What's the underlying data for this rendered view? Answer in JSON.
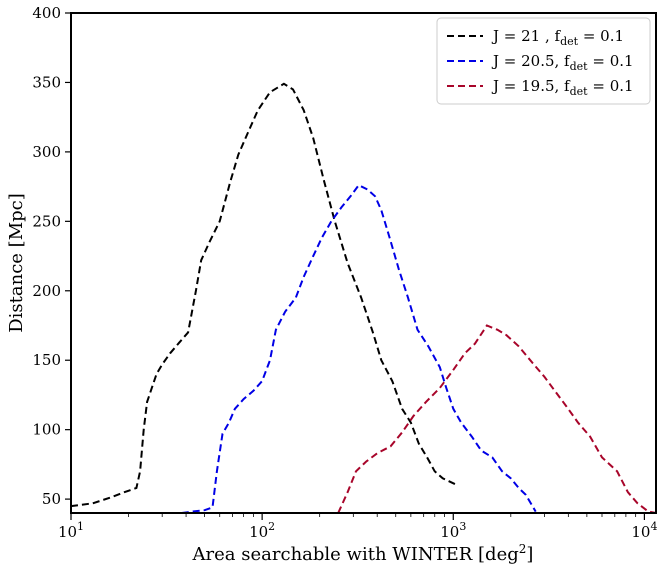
{
  "chart_data": {
    "type": "line",
    "xlabel": "Area searchable with WINTER [deg",
    "xlabel_sup": "2",
    "xlabel_end": "]",
    "ylabel": "Distance [Mpc]",
    "xscale": "log",
    "xlim": [
      10,
      11500
    ],
    "ylim": [
      40,
      400
    ],
    "x_ticks": [
      {
        "value": 10,
        "base": "10",
        "exp": "1"
      },
      {
        "value": 100,
        "base": "10",
        "exp": "2"
      },
      {
        "value": 1000,
        "base": "10",
        "exp": "3"
      },
      {
        "value": 10000,
        "base": "10",
        "exp": "4"
      }
    ],
    "y_ticks": [
      50,
      100,
      150,
      200,
      250,
      300,
      350,
      400
    ],
    "grid": false,
    "legend_position": "top-right",
    "series": [
      {
        "name_main": "J = 21 , f",
        "name_sub": "det",
        "name_end": " = 0.1",
        "color": "#000000",
        "points": [
          [
            10,
            45
          ],
          [
            13,
            47
          ],
          [
            16,
            51
          ],
          [
            19,
            55
          ],
          [
            22,
            58
          ],
          [
            23,
            70
          ],
          [
            24,
            100
          ],
          [
            25,
            120
          ],
          [
            28,
            140
          ],
          [
            30,
            147
          ],
          [
            33,
            155
          ],
          [
            37,
            163
          ],
          [
            41,
            170
          ],
          [
            45,
            200
          ],
          [
            48,
            222
          ],
          [
            53,
            235
          ],
          [
            60,
            250
          ],
          [
            68,
            278
          ],
          [
            75,
            298
          ],
          [
            85,
            315
          ],
          [
            95,
            330
          ],
          [
            110,
            343
          ],
          [
            130,
            349
          ],
          [
            145,
            345
          ],
          [
            165,
            330
          ],
          [
            185,
            310
          ],
          [
            210,
            280
          ],
          [
            240,
            250
          ],
          [
            280,
            220
          ],
          [
            330,
            195
          ],
          [
            380,
            170
          ],
          [
            420,
            150
          ],
          [
            480,
            135
          ],
          [
            540,
            115
          ],
          [
            600,
            105
          ],
          [
            660,
            90
          ],
          [
            730,
            80
          ],
          [
            800,
            70
          ],
          [
            880,
            65
          ],
          [
            1050,
            60
          ]
        ]
      },
      {
        "name_main": "J = 20.5, f",
        "name_sub": "det",
        "name_end": " = 0.1",
        "color": "#0000e6",
        "points": [
          [
            38,
            40
          ],
          [
            43,
            41
          ],
          [
            50,
            42
          ],
          [
            55,
            44
          ],
          [
            58,
            70
          ],
          [
            62,
            97
          ],
          [
            67,
            105
          ],
          [
            72,
            115
          ],
          [
            80,
            122
          ],
          [
            90,
            128
          ],
          [
            100,
            135
          ],
          [
            110,
            150
          ],
          [
            118,
            172
          ],
          [
            132,
            185
          ],
          [
            150,
            195
          ],
          [
            165,
            210
          ],
          [
            185,
            225
          ],
          [
            205,
            238
          ],
          [
            230,
            250
          ],
          [
            260,
            260
          ],
          [
            290,
            268
          ],
          [
            320,
            276
          ],
          [
            355,
            273
          ],
          [
            390,
            268
          ],
          [
            420,
            258
          ],
          [
            465,
            238
          ],
          [
            520,
            215
          ],
          [
            580,
            195
          ],
          [
            650,
            172
          ],
          [
            740,
            160
          ],
          [
            850,
            145
          ],
          [
            920,
            130
          ],
          [
            1000,
            115
          ],
          [
            1100,
            105
          ],
          [
            1250,
            95
          ],
          [
            1400,
            85
          ],
          [
            1600,
            80
          ],
          [
            1800,
            70
          ],
          [
            2000,
            65
          ],
          [
            2200,
            58
          ],
          [
            2400,
            53
          ],
          [
            2700,
            41
          ]
        ]
      },
      {
        "name_main": "J = 19.5, f",
        "name_sub": "det",
        "name_end": " = 0.1",
        "color": "#a8052a",
        "points": [
          [
            250,
            40
          ],
          [
            280,
            55
          ],
          [
            310,
            70
          ],
          [
            350,
            77
          ],
          [
            400,
            83
          ],
          [
            470,
            88
          ],
          [
            540,
            98
          ],
          [
            620,
            110
          ],
          [
            720,
            120
          ],
          [
            850,
            130
          ],
          [
            1000,
            143
          ],
          [
            1150,
            155
          ],
          [
            1300,
            162
          ],
          [
            1500,
            175
          ],
          [
            1700,
            172
          ],
          [
            1900,
            168
          ],
          [
            2200,
            160
          ],
          [
            2600,
            148
          ],
          [
            3000,
            138
          ],
          [
            3400,
            128
          ],
          [
            3900,
            117
          ],
          [
            4500,
            105
          ],
          [
            5200,
            95
          ],
          [
            6000,
            80
          ],
          [
            7200,
            70
          ],
          [
            8200,
            55
          ],
          [
            9200,
            47
          ],
          [
            10500,
            41
          ],
          [
            11500,
            40
          ]
        ]
      }
    ]
  }
}
